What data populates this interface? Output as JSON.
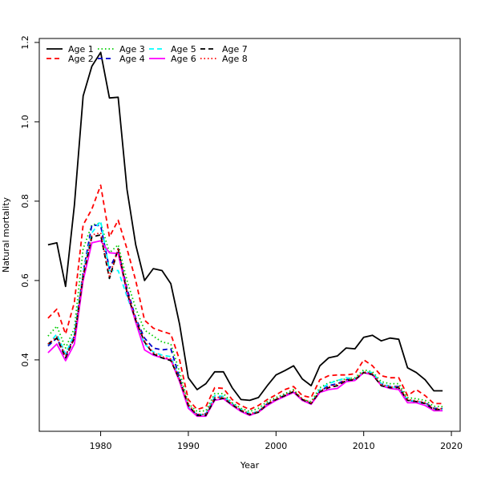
{
  "chart_data": {
    "type": "line",
    "xlabel": "Year",
    "ylabel": "Natural mortality",
    "xlim": [
      1973,
      2021
    ],
    "ylim": [
      0.22,
      1.21
    ],
    "xticks": [
      1980,
      1990,
      2000,
      2010,
      2020
    ],
    "yticks": [
      0.4,
      0.6,
      0.8,
      1.0,
      1.2
    ],
    "ytick_labels": [
      "0.4",
      "0.6",
      "0.8",
      "1.0",
      "1.2"
    ],
    "grid": false,
    "legend_position": "top-left",
    "x": [
      1974,
      1975,
      1976,
      1977,
      1978,
      1979,
      1980,
      1981,
      1982,
      1983,
      1984,
      1985,
      1986,
      1987,
      1988,
      1989,
      1990,
      1991,
      1992,
      1993,
      1994,
      1995,
      1996,
      1997,
      1998,
      1999,
      2000,
      2001,
      2002,
      2003,
      2004,
      2005,
      2006,
      2007,
      2008,
      2009,
      2010,
      2011,
      2012,
      2013,
      2014,
      2015,
      2016,
      2017,
      2018,
      2019
    ],
    "series": [
      {
        "name": "Age 1",
        "color": "#000000",
        "dash": "solid",
        "values": [
          0.69,
          0.695,
          0.585,
          0.79,
          1.065,
          1.14,
          1.175,
          1.06,
          1.062,
          0.83,
          0.69,
          0.6,
          0.63,
          0.625,
          0.592,
          0.49,
          0.355,
          0.325,
          0.34,
          0.37,
          0.37,
          0.33,
          0.3,
          0.298,
          0.305,
          0.335,
          0.362,
          0.373,
          0.385,
          0.352,
          0.335,
          0.385,
          0.405,
          0.41,
          0.43,
          0.428,
          0.457,
          0.462,
          0.448,
          0.455,
          0.452,
          0.38,
          0.368,
          0.35,
          0.322,
          0.322
        ]
      },
      {
        "name": "Age 2",
        "color": "#ff0000",
        "dash": "dashed",
        "values": [
          0.505,
          0.528,
          0.465,
          0.545,
          0.74,
          0.78,
          0.84,
          0.71,
          0.752,
          0.68,
          0.6,
          0.5,
          0.48,
          0.472,
          0.465,
          0.4,
          0.3,
          0.275,
          0.282,
          0.33,
          0.328,
          0.3,
          0.285,
          0.275,
          0.285,
          0.3,
          0.312,
          0.325,
          0.333,
          0.31,
          0.305,
          0.35,
          0.36,
          0.362,
          0.362,
          0.365,
          0.4,
          0.385,
          0.36,
          0.355,
          0.355,
          0.31,
          0.325,
          0.31,
          0.29,
          0.29
        ]
      },
      {
        "name": "Age 3",
        "color": "#00cd00",
        "dash": "dotted",
        "values": [
          0.46,
          0.485,
          0.43,
          0.48,
          0.68,
          0.74,
          0.745,
          0.67,
          0.69,
          0.6,
          0.53,
          0.475,
          0.46,
          0.445,
          0.44,
          0.37,
          0.29,
          0.27,
          0.272,
          0.315,
          0.315,
          0.292,
          0.278,
          0.27,
          0.278,
          0.295,
          0.305,
          0.315,
          0.325,
          0.3,
          0.295,
          0.33,
          0.342,
          0.348,
          0.352,
          0.355,
          0.375,
          0.37,
          0.345,
          0.34,
          0.34,
          0.305,
          0.302,
          0.298,
          0.283,
          0.282
        ]
      },
      {
        "name": "Age 4",
        "color": "#0000cd",
        "dash": "dashed",
        "values": [
          0.435,
          0.455,
          0.41,
          0.46,
          0.62,
          0.74,
          0.738,
          0.63,
          0.675,
          0.58,
          0.505,
          0.455,
          0.43,
          0.425,
          0.428,
          0.355,
          0.28,
          0.262,
          0.264,
          0.305,
          0.308,
          0.288,
          0.272,
          0.262,
          0.27,
          0.29,
          0.3,
          0.31,
          0.32,
          0.298,
          0.29,
          0.32,
          0.335,
          0.34,
          0.35,
          0.35,
          0.368,
          0.365,
          0.34,
          0.333,
          0.333,
          0.298,
          0.295,
          0.292,
          0.278,
          0.277
        ]
      },
      {
        "name": "Age 5",
        "color": "#00ffff",
        "dash": "dashed",
        "values": [
          0.438,
          0.465,
          0.415,
          0.465,
          0.62,
          0.72,
          0.75,
          0.625,
          0.625,
          0.56,
          0.5,
          0.44,
          0.42,
          0.412,
          0.408,
          0.35,
          0.282,
          0.262,
          0.262,
          0.31,
          0.308,
          0.29,
          0.275,
          0.265,
          0.27,
          0.29,
          0.3,
          0.312,
          0.32,
          0.3,
          0.29,
          0.325,
          0.34,
          0.348,
          0.355,
          0.352,
          0.37,
          0.368,
          0.34,
          0.332,
          0.33,
          0.3,
          0.295,
          0.29,
          0.275,
          0.275
        ]
      },
      {
        "name": "Age 6",
        "color": "#ff00ff",
        "dash": "solid",
        "values": [
          0.418,
          0.44,
          0.398,
          0.44,
          0.6,
          0.695,
          0.7,
          0.67,
          0.668,
          0.57,
          0.495,
          0.425,
          0.412,
          0.405,
          0.4,
          0.345,
          0.278,
          0.258,
          0.258,
          0.298,
          0.302,
          0.285,
          0.27,
          0.26,
          0.268,
          0.285,
          0.298,
          0.308,
          0.318,
          0.298,
          0.288,
          0.318,
          0.325,
          0.328,
          0.345,
          0.348,
          0.368,
          0.362,
          0.335,
          0.328,
          0.325,
          0.292,
          0.292,
          0.285,
          0.272,
          0.272
        ]
      },
      {
        "name": "Age 7",
        "color": "#000000",
        "dash": "dashed",
        "values": [
          0.44,
          0.455,
          0.405,
          0.455,
          0.61,
          0.71,
          0.715,
          0.605,
          0.68,
          0.57,
          0.5,
          0.445,
          0.415,
          0.405,
          0.398,
          0.35,
          0.285,
          0.26,
          0.26,
          0.3,
          0.303,
          0.287,
          0.272,
          0.262,
          0.268,
          0.288,
          0.3,
          0.31,
          0.32,
          0.3,
          0.29,
          0.32,
          0.33,
          0.335,
          0.348,
          0.35,
          0.368,
          0.363,
          0.335,
          0.33,
          0.33,
          0.298,
          0.295,
          0.29,
          0.275,
          0.275
        ]
      },
      {
        "name": "Age 8",
        "color": "#ff0000",
        "dash": "dotted",
        "values": [
          0.44,
          0.458,
          0.41,
          0.458,
          0.615,
          0.715,
          0.72,
          0.61,
          0.68,
          0.575,
          0.502,
          0.448,
          0.418,
          0.408,
          0.402,
          0.352,
          0.288,
          0.262,
          0.263,
          0.305,
          0.306,
          0.289,
          0.274,
          0.264,
          0.27,
          0.29,
          0.302,
          0.312,
          0.322,
          0.302,
          0.292,
          0.322,
          0.332,
          0.338,
          0.35,
          0.352,
          0.37,
          0.365,
          0.338,
          0.332,
          0.332,
          0.3,
          0.297,
          0.292,
          0.277,
          0.277
        ]
      }
    ]
  }
}
